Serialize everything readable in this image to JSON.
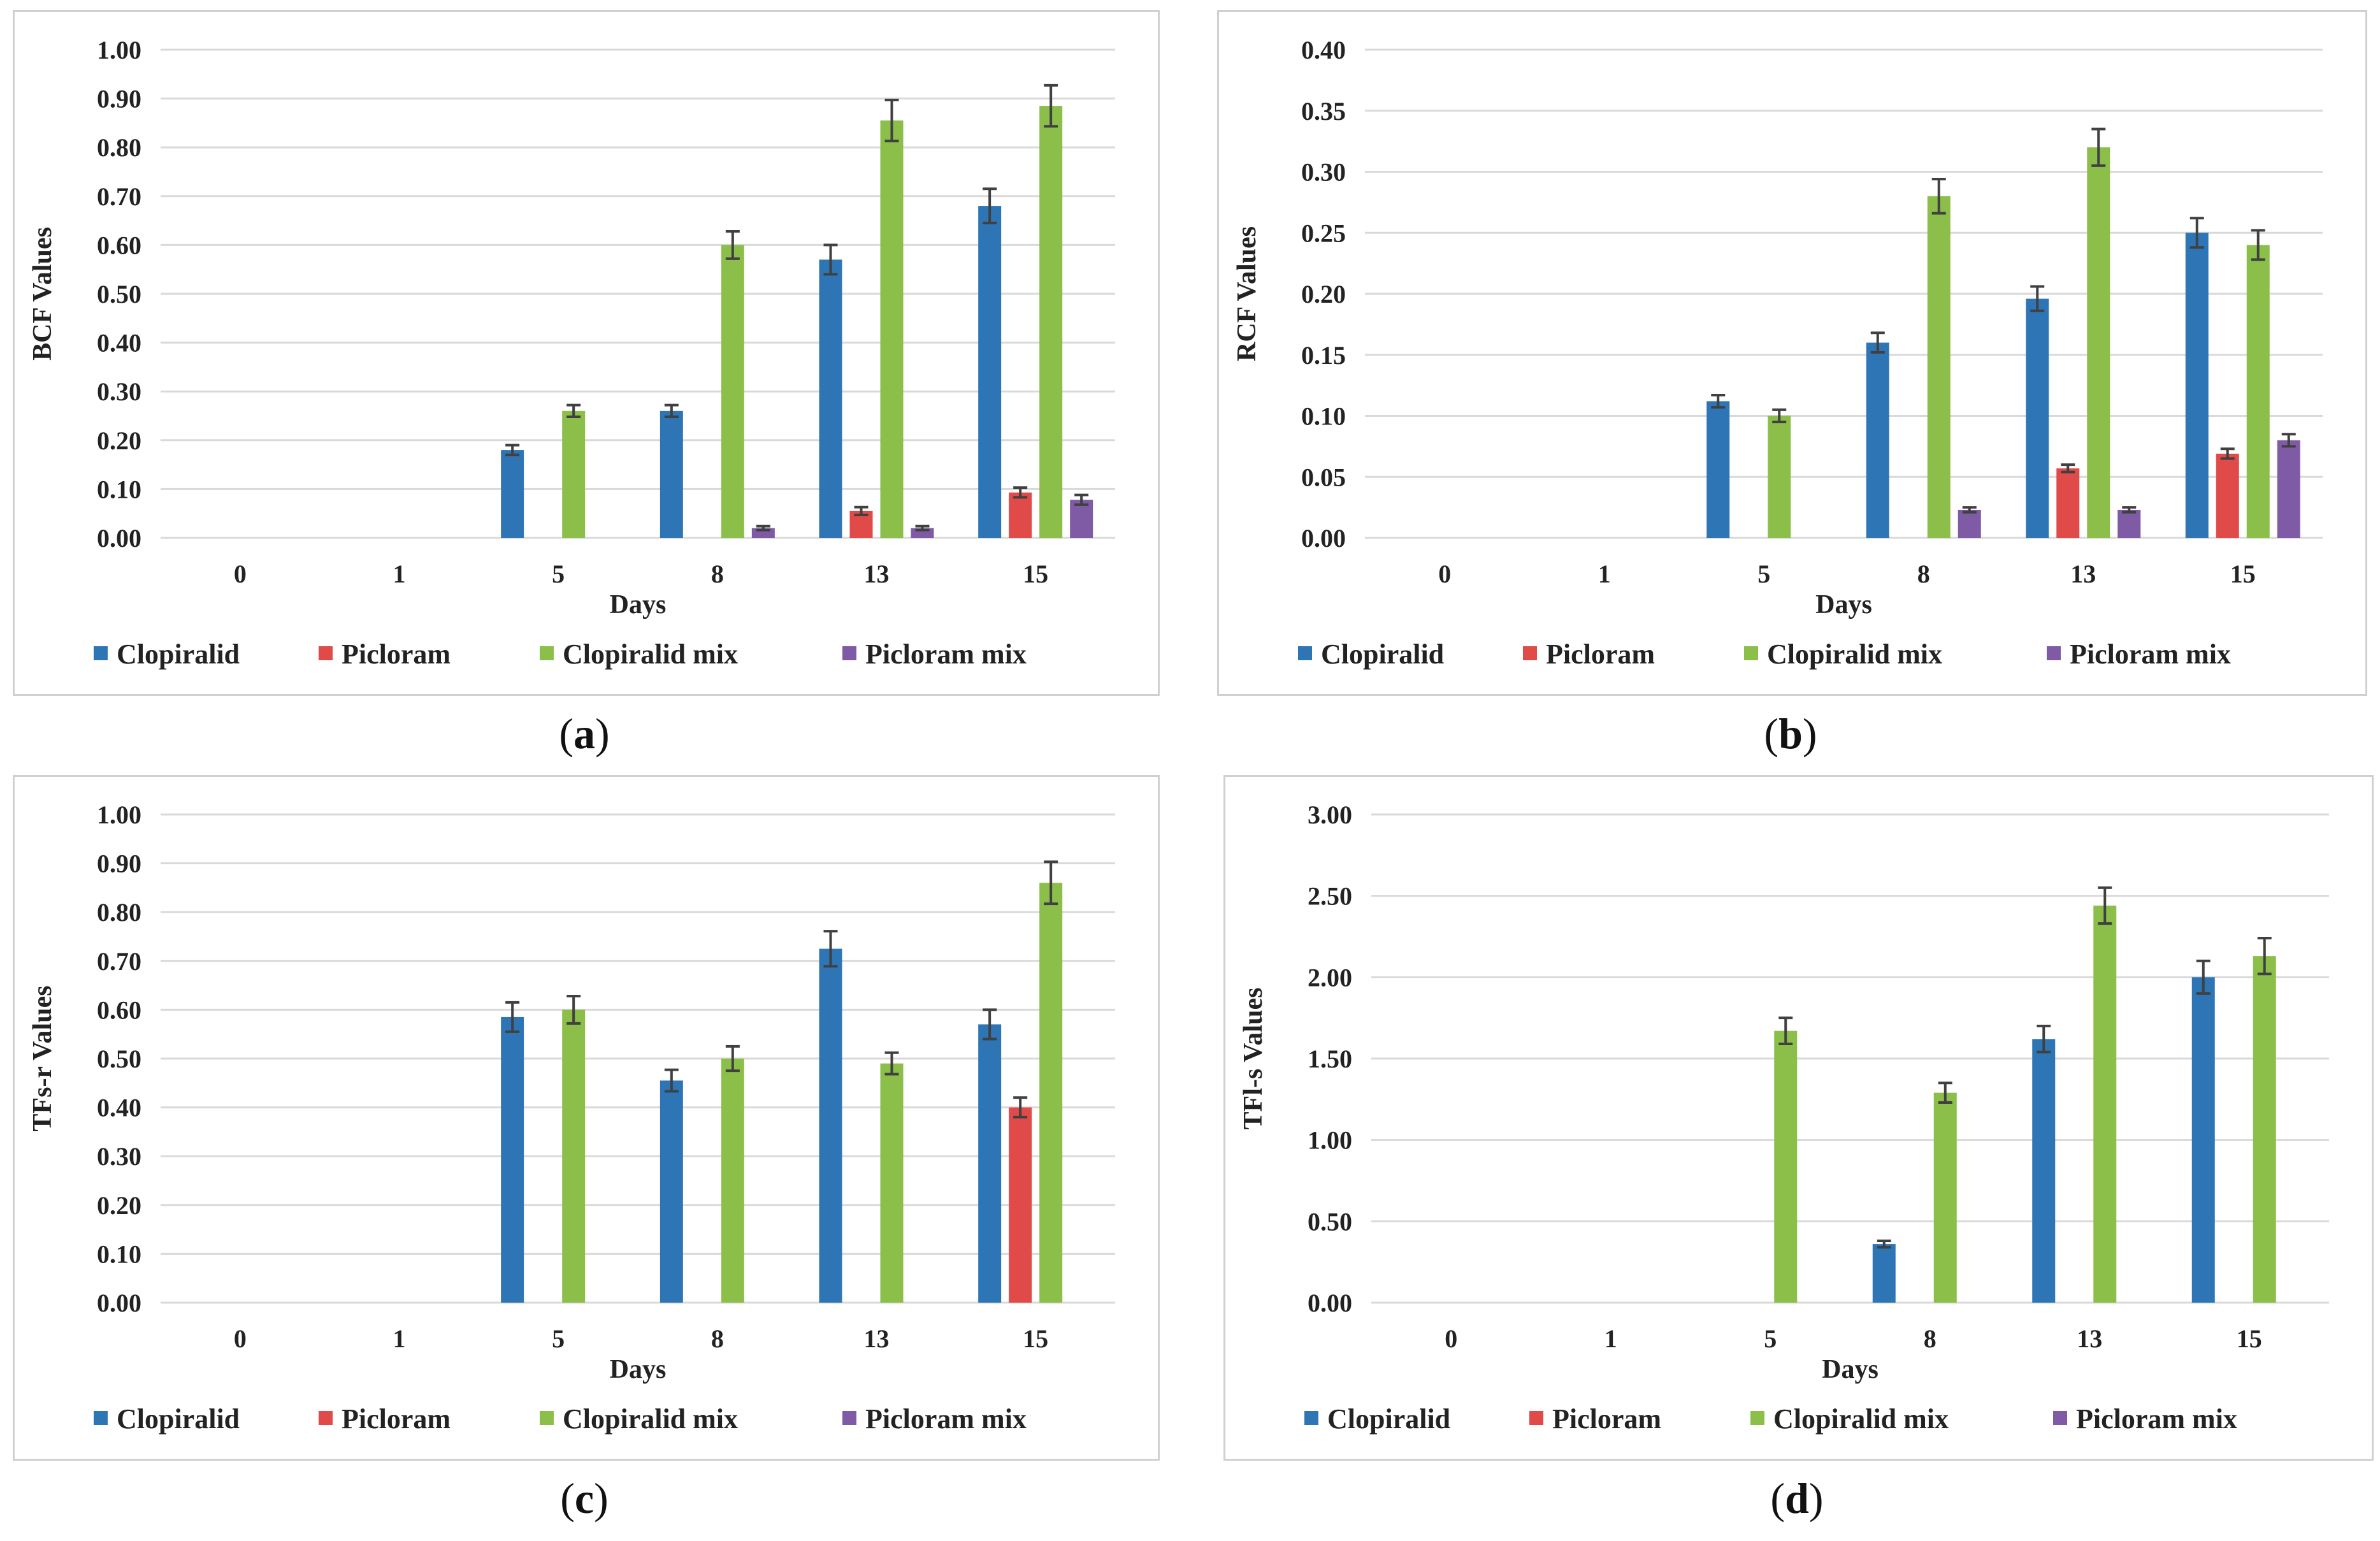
{
  "colors": {
    "Clopiralid": "#2e75b6",
    "Picloram": "#e04b4a",
    "Clopiralid mix": "#8bbf4a",
    "Picloram mix": "#7f5ba5"
  },
  "legend": [
    "Clopiralid",
    "Picloram",
    "Clopiralid mix",
    "Picloram mix"
  ],
  "chart_data": [
    {
      "id": "a",
      "caption": "a",
      "type": "bar",
      "xlabel": "Days",
      "ylabel": "BCF Values",
      "ylim": [
        0,
        1.0
      ],
      "yticks": [
        "0.00",
        "0.10",
        "0.20",
        "0.30",
        "0.40",
        "0.50",
        "0.60",
        "0.70",
        "0.80",
        "0.90",
        "1.00"
      ],
      "categories": [
        "0",
        "1",
        "5",
        "8",
        "13",
        "15"
      ],
      "series": [
        {
          "name": "Clopiralid",
          "values": [
            0,
            0,
            0.18,
            0.26,
            0.57,
            0.68
          ],
          "errors": [
            0,
            0,
            0.01,
            0.012,
            0.03,
            0.035
          ]
        },
        {
          "name": "Picloram",
          "values": [
            0,
            0,
            0,
            0,
            0.055,
            0.093
          ],
          "errors": [
            0,
            0,
            0,
            0,
            0.008,
            0.01
          ]
        },
        {
          "name": "Clopiralid mix",
          "values": [
            0,
            0,
            0.26,
            0.6,
            0.855,
            0.885
          ],
          "errors": [
            0,
            0,
            0.012,
            0.028,
            0.042,
            0.042
          ]
        },
        {
          "name": "Picloram mix",
          "values": [
            0,
            0,
            0,
            0.02,
            0.02,
            0.078
          ],
          "errors": [
            0,
            0,
            0,
            0.004,
            0.004,
            0.01
          ]
        }
      ]
    },
    {
      "id": "b",
      "caption": "b",
      "type": "bar",
      "xlabel": "Days",
      "ylabel": "RCF Values",
      "ylim": [
        0,
        0.4
      ],
      "yticks": [
        "0.00",
        "0.05",
        "0.10",
        "0.15",
        "0.20",
        "0.25",
        "0.30",
        "0.35",
        "0.40"
      ],
      "categories": [
        "0",
        "1",
        "5",
        "8",
        "13",
        "15"
      ],
      "series": [
        {
          "name": "Clopiralid",
          "values": [
            0,
            0,
            0.112,
            0.16,
            0.196,
            0.25
          ],
          "errors": [
            0,
            0,
            0.005,
            0.008,
            0.01,
            0.012
          ]
        },
        {
          "name": "Picloram",
          "values": [
            0,
            0,
            0,
            0,
            0.057,
            0.069
          ],
          "errors": [
            0,
            0,
            0,
            0,
            0.003,
            0.004
          ]
        },
        {
          "name": "Clopiralid mix",
          "values": [
            0,
            0,
            0.1,
            0.28,
            0.32,
            0.24
          ],
          "errors": [
            0,
            0,
            0.005,
            0.014,
            0.015,
            0.012
          ]
        },
        {
          "name": "Picloram mix",
          "values": [
            0,
            0,
            0,
            0.023,
            0.023,
            0.08
          ],
          "errors": [
            0,
            0,
            0,
            0.002,
            0.002,
            0.005
          ]
        }
      ]
    },
    {
      "id": "c",
      "caption": "c",
      "type": "bar",
      "xlabel": "Days",
      "ylabel": "TFs-r Values",
      "ylim": [
        0,
        1.0
      ],
      "yticks": [
        "0.00",
        "0.10",
        "0.20",
        "0.30",
        "0.40",
        "0.50",
        "0.60",
        "0.70",
        "0.80",
        "0.90",
        "1.00"
      ],
      "categories": [
        "0",
        "1",
        "5",
        "8",
        "13",
        "15"
      ],
      "series": [
        {
          "name": "Clopiralid",
          "values": [
            0,
            0,
            0.585,
            0.455,
            0.725,
            0.57
          ],
          "errors": [
            0,
            0,
            0.03,
            0.022,
            0.036,
            0.03
          ]
        },
        {
          "name": "Picloram",
          "values": [
            0,
            0,
            0,
            0,
            0,
            0.4
          ],
          "errors": [
            0,
            0,
            0,
            0,
            0,
            0.02
          ]
        },
        {
          "name": "Clopiralid mix",
          "values": [
            0,
            0,
            0.6,
            0.5,
            0.49,
            0.86
          ],
          "errors": [
            0,
            0,
            0.028,
            0.025,
            0.022,
            0.043
          ]
        },
        {
          "name": "Picloram mix",
          "values": [
            0,
            0,
            0,
            0,
            0,
            0
          ],
          "errors": [
            0,
            0,
            0,
            0,
            0,
            0
          ]
        }
      ]
    },
    {
      "id": "d",
      "caption": "d",
      "type": "bar",
      "xlabel": "Days",
      "ylabel": "TFl-s Values",
      "ylim": [
        0,
        3.0
      ],
      "yticks": [
        "0.00",
        "0.50",
        "1.00",
        "1.50",
        "2.00",
        "2.50",
        "3.00"
      ],
      "categories": [
        "0",
        "1",
        "5",
        "8",
        "13",
        "15"
      ],
      "series": [
        {
          "name": "Clopiralid",
          "values": [
            0,
            0,
            0,
            0.36,
            1.62,
            2.0
          ],
          "errors": [
            0,
            0,
            0,
            0.02,
            0.08,
            0.1
          ]
        },
        {
          "name": "Picloram",
          "values": [
            0,
            0,
            0,
            0,
            0,
            0
          ],
          "errors": [
            0,
            0,
            0,
            0,
            0,
            0
          ]
        },
        {
          "name": "Clopiralid mix",
          "values": [
            0,
            0,
            1.67,
            1.29,
            2.44,
            2.13
          ],
          "errors": [
            0,
            0,
            0.08,
            0.06,
            0.11,
            0.11
          ]
        },
        {
          "name": "Picloram mix",
          "values": [
            0,
            0,
            0,
            0,
            0,
            0
          ],
          "errors": [
            0,
            0,
            0,
            0,
            0,
            0
          ]
        }
      ]
    }
  ]
}
